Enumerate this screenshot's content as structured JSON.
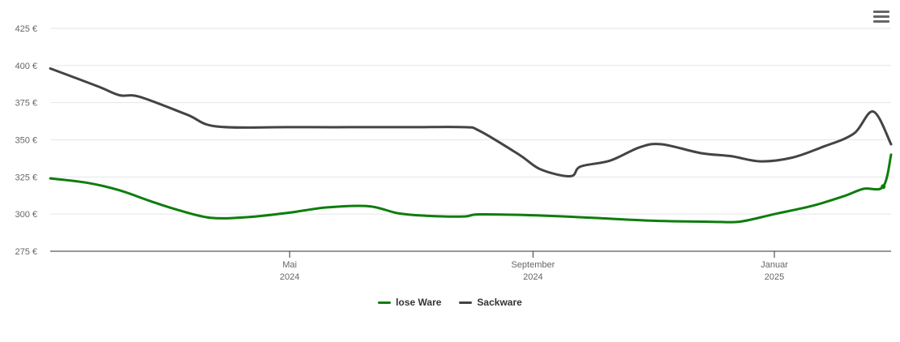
{
  "chart_data": {
    "type": "line",
    "title": "",
    "xlabel": "",
    "ylabel": "",
    "ylim": [
      275,
      425
    ],
    "yticks": [
      275,
      300,
      325,
      350,
      375,
      400,
      425
    ],
    "ytick_labels": [
      "275 €",
      "300 €",
      "325 €",
      "350 €",
      "375 €",
      "400 €",
      "425 €"
    ],
    "xlim": [
      "2024-01-01",
      "2025-03-01"
    ],
    "xticks": [
      {
        "date": "2024-05-01",
        "month": "Mai",
        "year": "2024"
      },
      {
        "date": "2024-09-01",
        "month": "September",
        "year": "2024"
      },
      {
        "date": "2025-01-01",
        "month": "Januar",
        "year": "2025"
      }
    ],
    "grid": true,
    "legend_position": "bottom-center",
    "series": [
      {
        "name": "lose Ware",
        "color": "#0e7d0e",
        "points": [
          [
            "2024-01-01",
            324
          ],
          [
            "2024-01-20",
            321
          ],
          [
            "2024-02-05",
            316
          ],
          [
            "2024-02-20",
            309
          ],
          [
            "2024-03-05",
            303
          ],
          [
            "2024-03-22",
            297.5
          ],
          [
            "2024-04-10",
            298
          ],
          [
            "2024-05-01",
            301
          ],
          [
            "2024-05-20",
            304.5
          ],
          [
            "2024-06-10",
            305.3
          ],
          [
            "2024-06-25",
            300.5
          ],
          [
            "2024-07-10",
            298.8
          ],
          [
            "2024-07-28",
            298.4
          ],
          [
            "2024-08-05",
            299.8
          ],
          [
            "2024-09-01",
            299.2
          ],
          [
            "2024-10-01",
            297.5
          ],
          [
            "2024-11-01",
            295.5
          ],
          [
            "2024-12-01",
            294.8
          ],
          [
            "2024-12-15",
            295
          ],
          [
            "2025-01-01",
            300
          ],
          [
            "2025-01-20",
            305.5
          ],
          [
            "2025-02-05",
            312
          ],
          [
            "2025-02-15",
            317
          ],
          [
            "2025-02-25",
            318.5
          ],
          [
            "2025-03-01",
            340
          ]
        ]
      },
      {
        "name": "Sackware",
        "color": "#434348",
        "points": [
          [
            "2024-01-01",
            398
          ],
          [
            "2024-01-25",
            386
          ],
          [
            "2024-02-05",
            380
          ],
          [
            "2024-02-15",
            379
          ],
          [
            "2024-03-10",
            367
          ],
          [
            "2024-03-25",
            359
          ],
          [
            "2024-05-01",
            358.5
          ],
          [
            "2024-06-01",
            358.5
          ],
          [
            "2024-07-01",
            358.5
          ],
          [
            "2024-07-28",
            358.5
          ],
          [
            "2024-08-05",
            356
          ],
          [
            "2024-08-25",
            340
          ],
          [
            "2024-09-05",
            330
          ],
          [
            "2024-09-20",
            325.5
          ],
          [
            "2024-09-25",
            332
          ],
          [
            "2024-10-10",
            336
          ],
          [
            "2024-10-25",
            345
          ],
          [
            "2024-11-05",
            347
          ],
          [
            "2024-11-25",
            341
          ],
          [
            "2024-12-10",
            339
          ],
          [
            "2024-12-25",
            335.5
          ],
          [
            "2025-01-10",
            338
          ],
          [
            "2025-01-25",
            345
          ],
          [
            "2025-02-10",
            354
          ],
          [
            "2025-02-20",
            369
          ],
          [
            "2025-03-01",
            347
          ]
        ]
      }
    ],
    "end_marker_series": "lose Ware"
  },
  "toolbar": {
    "menu_icon": "hamburger-menu-icon"
  }
}
